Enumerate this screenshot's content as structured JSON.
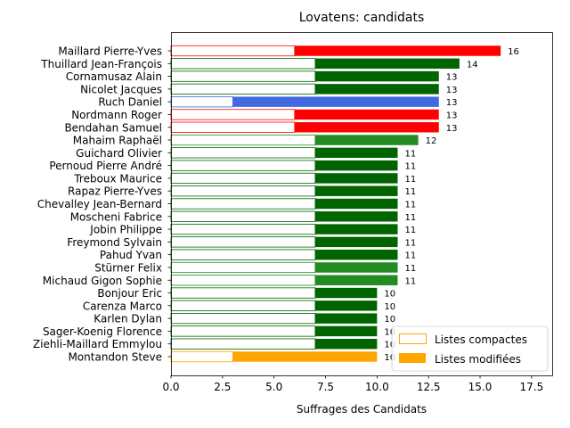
{
  "chart_data": {
    "type": "bar",
    "orientation": "horizontal",
    "stacked": true,
    "title": "Lovatens: candidats",
    "xlabel": "Suffrages des Candidats",
    "ylabel": "",
    "xlim": [
      0,
      18.5
    ],
    "x_ticks": [
      "0.0",
      "2.5",
      "5.0",
      "7.5",
      "10.0",
      "12.5",
      "15.0",
      "17.5"
    ],
    "x_tick_values": [
      0,
      2.5,
      5,
      7.5,
      10,
      12.5,
      15,
      17.5
    ],
    "grid": false,
    "legend_position": "lower-right",
    "legend": [
      {
        "label": "Listes compactes",
        "style": "outline",
        "color": "#ffa500"
      },
      {
        "label": "Listes modifiées",
        "style": "filled",
        "color": "#ffa500"
      }
    ],
    "categories": [
      "Maillard Pierre-Yves",
      "Thuillard Jean-François",
      "Cornamusaz Alain",
      "Nicolet Jacques",
      "Ruch Daniel",
      "Nordmann Roger",
      "Bendahan Samuel",
      "Mahaim Raphaël",
      "Guichard Olivier",
      "Pernoud Pierre André",
      "Treboux Maurice",
      "Rapaz Pierre-Yves",
      "Chevalley Jean-Bernard",
      "Moscheni Fabrice",
      "Jobin Philippe",
      "Freymond Sylvain",
      "Pahud Yvan",
      "Stürner Felix",
      "Michaud Gigon Sophie",
      "Bonjour Eric",
      "Carenza Marco",
      "Karlen Dylan",
      "Sager-Koenig Florence",
      "Ziehli-Maillard Emmylou",
      "Montandon Steve"
    ],
    "series": [
      {
        "name": "Listes compactes",
        "values": [
          6,
          7,
          7,
          7,
          3,
          6,
          6,
          7,
          7,
          7,
          7,
          7,
          7,
          7,
          7,
          7,
          7,
          7,
          7,
          7,
          7,
          7,
          7,
          7,
          3
        ]
      },
      {
        "name": "Listes modifiées",
        "values": [
          10,
          7,
          6,
          6,
          10,
          7,
          7,
          5,
          4,
          4,
          4,
          4,
          4,
          4,
          4,
          4,
          4,
          4,
          4,
          3,
          3,
          3,
          3,
          3,
          7
        ]
      }
    ],
    "totals": [
      "16",
      "14",
      "13",
      "13",
      "13",
      "13",
      "13",
      "12",
      "11",
      "11",
      "11",
      "11",
      "11",
      "11",
      "11",
      "11",
      "11",
      "11",
      "11",
      "10",
      "10",
      "10",
      "10",
      "10",
      "10"
    ],
    "colors": [
      "#ff0000",
      "#006400",
      "#006400",
      "#006400",
      "#4169e1",
      "#ff0000",
      "#ff0000",
      "#228b22",
      "#006400",
      "#006400",
      "#006400",
      "#006400",
      "#006400",
      "#006400",
      "#006400",
      "#006400",
      "#006400",
      "#228b22",
      "#228b22",
      "#006400",
      "#006400",
      "#006400",
      "#006400",
      "#006400",
      "#ffa500"
    ]
  }
}
